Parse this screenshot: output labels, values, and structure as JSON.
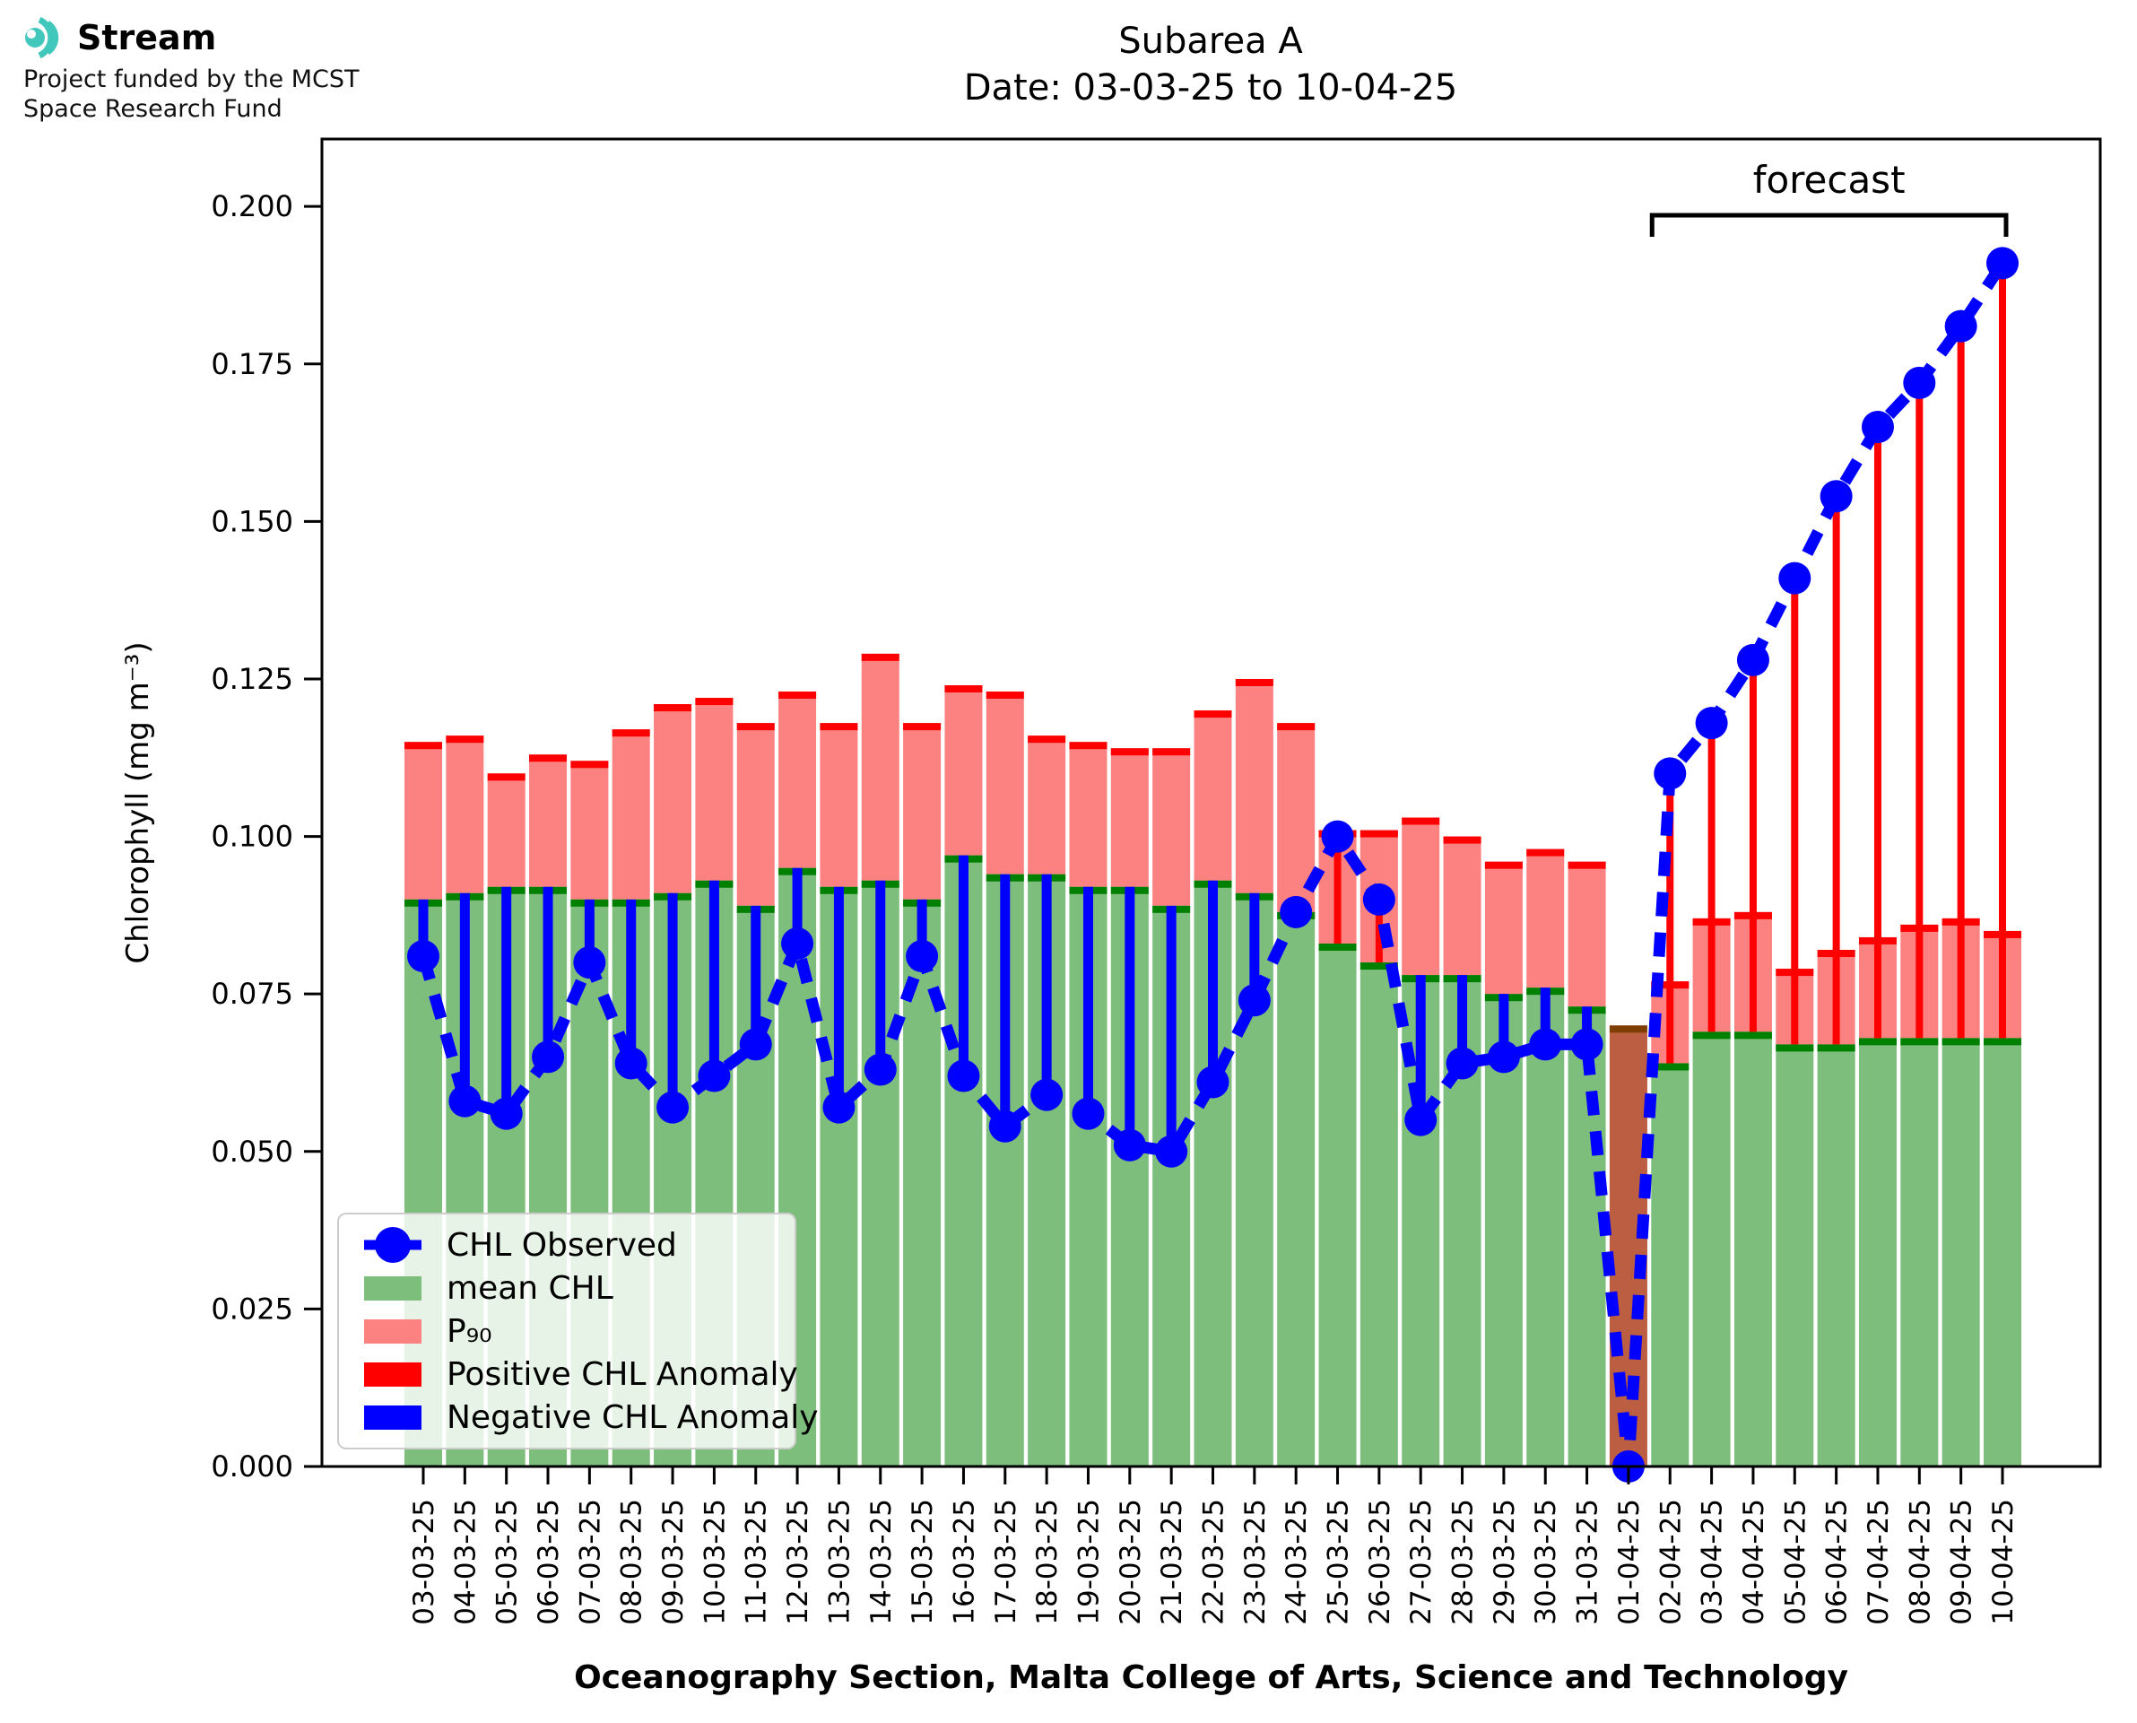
{
  "logo": {
    "brand": "Stream",
    "subtitle_line1": "Project funded by the MCST",
    "subtitle_line2": "Space Research Fund",
    "icon_color": "#41c7bc"
  },
  "title": {
    "line1": "Subarea A",
    "line2": "Date: 03-03-25 to 10-04-25"
  },
  "legend": {
    "items": [
      {
        "label": "CHL Observed",
        "marker": "line-dot",
        "color": "#0000ff"
      },
      {
        "label": "mean CHL",
        "marker": "rect",
        "color": "#7dbe7d"
      },
      {
        "label": "P₉₀",
        "marker": "rect",
        "color": "#fc8181"
      },
      {
        "label": "Positive CHL Anomaly",
        "marker": "rect",
        "color": "#ff0000"
      },
      {
        "label": "Negative CHL Anomaly",
        "marker": "rect",
        "color": "#0000ff"
      }
    ]
  },
  "chart_data": {
    "type": "bar",
    "title": "Subarea A  Date: 03-03-25 to 10-04-25",
    "xlabel": "Oceanography Section, Malta College of Arts, Science and Technology",
    "ylabel": "Chlorophyll (mg m⁻³)",
    "ylim": [
      0,
      0.2107
    ],
    "ytick_step": 0.025,
    "ytick_max": 0.2,
    "grid": false,
    "legend_position": "lower left",
    "annotation": {
      "label": "forecast",
      "start_index": 30,
      "end_index": 38
    },
    "categories": [
      "03-03-25",
      "04-03-25",
      "05-03-25",
      "06-03-25",
      "07-03-25",
      "08-03-25",
      "09-03-25",
      "10-03-25",
      "11-03-25",
      "12-03-25",
      "13-03-25",
      "14-03-25",
      "15-03-25",
      "16-03-25",
      "17-03-25",
      "18-03-25",
      "19-03-25",
      "20-03-25",
      "21-03-25",
      "22-03-25",
      "23-03-25",
      "24-03-25",
      "25-03-25",
      "26-03-25",
      "27-03-25",
      "28-03-25",
      "29-03-25",
      "30-03-25",
      "31-03-25",
      "01-04-25",
      "02-04-25",
      "03-04-25",
      "04-04-25",
      "05-04-25",
      "06-04-25",
      "07-04-25",
      "08-04-25",
      "09-04-25",
      "10-04-25"
    ],
    "series": [
      {
        "name": "CHL Observed",
        "type": "line+marker",
        "color": "#0000ff",
        "values": [
          0.081,
          0.058,
          0.056,
          0.065,
          0.08,
          0.064,
          0.057,
          0.062,
          0.067,
          0.083,
          0.057,
          0.063,
          0.081,
          0.062,
          0.054,
          0.059,
          0.056,
          0.051,
          0.05,
          0.061,
          0.074,
          0.088,
          0.1,
          0.09,
          0.055,
          0.064,
          0.065,
          0.067,
          0.067,
          0.0,
          0.11,
          0.118,
          0.128,
          0.141,
          0.154,
          0.165,
          0.172,
          0.181,
          0.191
        ]
      },
      {
        "name": "mean CHL",
        "type": "bar",
        "fill": "#7dbe7d",
        "cap_color": "#008000",
        "values": [
          0.09,
          0.091,
          0.092,
          0.092,
          0.09,
          0.09,
          0.091,
          0.093,
          0.089,
          0.095,
          0.092,
          0.093,
          0.09,
          0.097,
          0.094,
          0.094,
          0.092,
          0.092,
          0.089,
          0.093,
          0.091,
          0.088,
          0.083,
          0.08,
          0.078,
          0.078,
          0.075,
          0.076,
          0.073,
          0.07,
          0.064,
          0.069,
          0.069,
          0.067,
          0.067,
          0.068,
          0.068,
          0.068,
          0.068
        ]
      },
      {
        "name": "P₉₀",
        "type": "bar-stacked-top",
        "fill": "#fc8181",
        "cap_color": "#ff0000",
        "values": [
          0.115,
          0.116,
          0.11,
          0.113,
          0.112,
          0.117,
          0.121,
          0.122,
          0.118,
          0.123,
          0.118,
          0.129,
          0.118,
          0.124,
          0.123,
          0.116,
          0.115,
          0.114,
          0.114,
          0.12,
          0.125,
          0.118,
          0.101,
          0.101,
          0.103,
          0.1,
          0.096,
          0.098,
          0.096,
          null,
          0.077,
          0.087,
          0.088,
          0.079,
          0.082,
          0.084,
          0.086,
          0.087,
          0.085
        ]
      }
    ],
    "anomaly": {
      "positive_color": "#ff0000",
      "negative_color": "#0000ff"
    },
    "special_bar": {
      "category": "01-04-25",
      "index": 29,
      "fill": "#bc5e41",
      "cap_color": "#7d3e00"
    }
  }
}
